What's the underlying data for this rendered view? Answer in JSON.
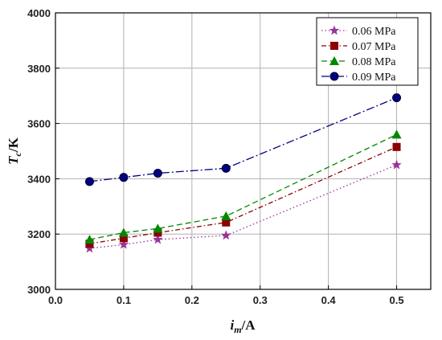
{
  "chart_data": {
    "type": "line",
    "x": [
      0.05,
      0.1,
      0.15,
      0.25,
      0.5
    ],
    "xlim": [
      0.0,
      0.55
    ],
    "ylim": [
      3000,
      4000
    ],
    "xticks": [
      "0.0",
      "0.1",
      "0.2",
      "0.3",
      "0.4",
      "0.5"
    ],
    "yticks": [
      "3000",
      "3200",
      "3400",
      "3600",
      "3800",
      "4000"
    ],
    "xlabel": {
      "main": "i",
      "sub": "m",
      "unit": "/A"
    },
    "ylabel": {
      "main": "T",
      "sub": "c",
      "unit": "/K"
    },
    "grid": true,
    "legend_position": "top-right",
    "series": [
      {
        "name": "0.06 MPa",
        "values": [
          3148,
          3162,
          3180,
          3195,
          3450
        ],
        "color": "#993399",
        "marker": "star",
        "dash": "dotted"
      },
      {
        "name": "0.07 MPa",
        "values": [
          3165,
          3185,
          3205,
          3242,
          3515
        ],
        "color": "#8b0000",
        "marker": "square",
        "dash": "dash-dot"
      },
      {
        "name": "0.08 MPa",
        "values": [
          3180,
          3205,
          3220,
          3265,
          3560
        ],
        "color": "#008800",
        "marker": "triangle",
        "dash": "dashed"
      },
      {
        "name": "0.09 MPa",
        "values": [
          3390,
          3405,
          3420,
          3438,
          3693
        ],
        "color": "#000080",
        "marker": "circle",
        "dash": "dash-dot-long"
      }
    ]
  }
}
